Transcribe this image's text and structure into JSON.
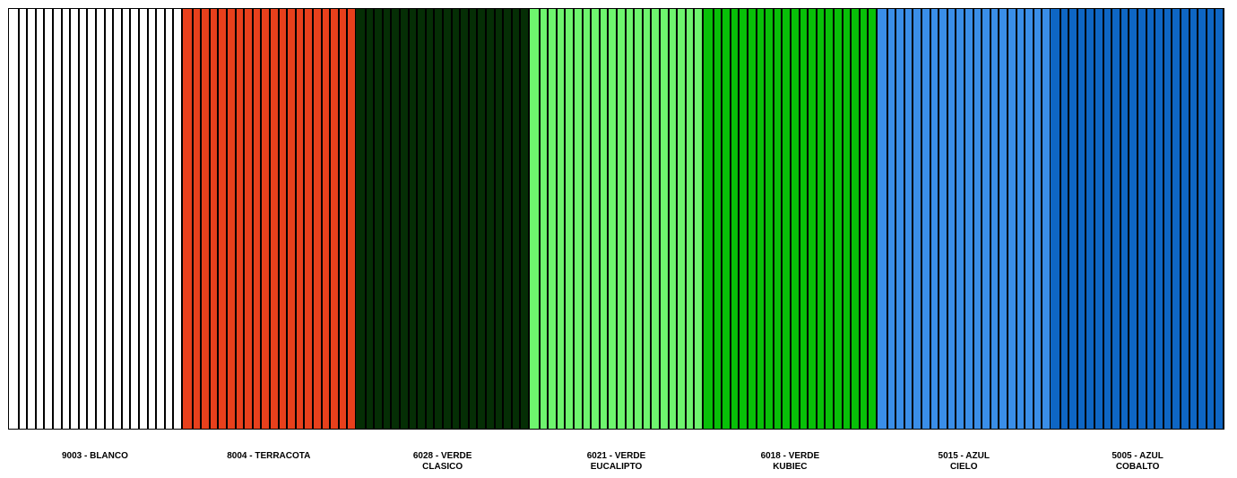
{
  "swatches": [
    {
      "label": "9003 - BLANCO",
      "color": "#ffffff"
    },
    {
      "label": "8004 - TERRACOTA",
      "color": "#e8401c"
    },
    {
      "label": "6028 - VERDE\nCLASICO",
      "color": "#052e05"
    },
    {
      "label": "6021 - VERDE\nEUCALIPTO",
      "color": "#6ef56e"
    },
    {
      "label": "6018 - VERDE\nKUBIEC",
      "color": "#08c008"
    },
    {
      "label": "5015 - AZUL\nCIELO",
      "color": "#3a8ee8"
    },
    {
      "label": "5005 - AZUL\nCOBALTO",
      "color": "#0e66c4"
    }
  ]
}
